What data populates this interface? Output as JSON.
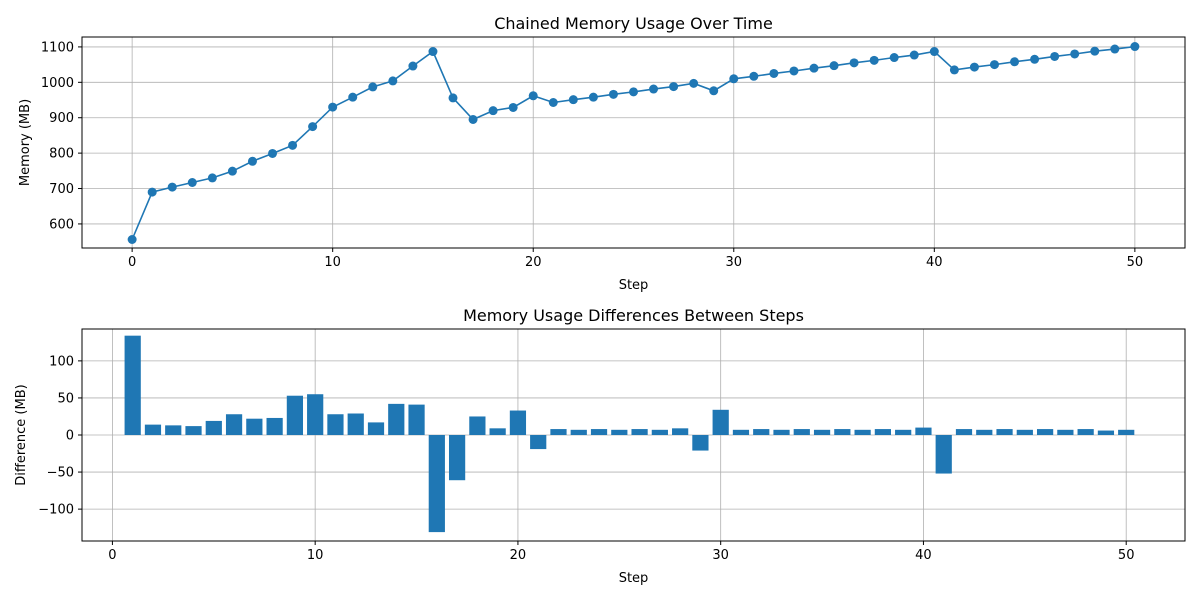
{
  "chart_data": [
    {
      "type": "line",
      "title": "Chained Memory Usage Over Time",
      "xlabel": "Step",
      "ylabel": "Memory (MB)",
      "xlim": [
        -2.5,
        52.5
      ],
      "ylim": [
        532,
        1128
      ],
      "xticks": [
        0,
        10,
        20,
        30,
        40,
        50
      ],
      "yticks": [
        600,
        700,
        800,
        900,
        1000,
        1100
      ],
      "grid": true,
      "color": "#1f77b4",
      "marker": "circle",
      "x": [
        0,
        1,
        2,
        3,
        4,
        5,
        6,
        7,
        8,
        9,
        10,
        11,
        12,
        13,
        14,
        15,
        16,
        17,
        18,
        19,
        20,
        21,
        22,
        23,
        24,
        25,
        26,
        27,
        28,
        29,
        30,
        31,
        32,
        33,
        34,
        35,
        36,
        37,
        38,
        39,
        40,
        41,
        42,
        43,
        44,
        45,
        46,
        47,
        48,
        49,
        50
      ],
      "series": [
        {
          "values": [
            556,
            690,
            704,
            717,
            730,
            749,
            777,
            799,
            822,
            875,
            930,
            958,
            987,
            1004,
            1046,
            1087,
            956,
            895,
            920,
            929,
            962,
            943,
            951,
            958,
            966,
            973,
            981,
            988,
            997,
            976,
            1010,
            1017,
            1025,
            1032,
            1040,
            1047,
            1055,
            1062,
            1070,
            1077,
            1087,
            1035,
            1043,
            1050,
            1058,
            1065,
            1073,
            1080,
            1088,
            1094,
            1101
          ]
        }
      ]
    },
    {
      "type": "bar",
      "title": "Memory Usage Differences Between Steps",
      "xlabel": "Step",
      "ylabel": "Difference (MB)",
      "xlim": [
        -1.5,
        52.9
      ],
      "ylim": [
        -143,
        143
      ],
      "xticks": [
        0,
        10,
        20,
        30,
        40,
        50
      ],
      "yticks": [
        -100,
        -50,
        0,
        50,
        100
      ],
      "ytick_labels": [
        "−100",
        "−50",
        "0",
        "50",
        "100"
      ],
      "grid": true,
      "color": "#1f77b4",
      "x": [
        1,
        2,
        3,
        4,
        5,
        6,
        7,
        8,
        9,
        10,
        11,
        12,
        13,
        14,
        15,
        16,
        17,
        18,
        19,
        20,
        21,
        22,
        23,
        24,
        25,
        26,
        27,
        28,
        29,
        30,
        31,
        32,
        33,
        34,
        35,
        36,
        37,
        38,
        39,
        40,
        41,
        42,
        43,
        44,
        45,
        46,
        47,
        48,
        49,
        50
      ],
      "values": [
        134,
        14,
        13,
        12,
        19,
        28,
        22,
        23,
        53,
        55,
        28,
        29,
        17,
        42,
        41,
        -131,
        -61,
        25,
        9,
        33,
        -19,
        8,
        7,
        8,
        7,
        8,
        7,
        9,
        -21,
        34,
        7,
        8,
        7,
        8,
        7,
        8,
        7,
        8,
        7,
        10,
        -52,
        8,
        7,
        8,
        7,
        8,
        7,
        8,
        6,
        7
      ]
    }
  ]
}
